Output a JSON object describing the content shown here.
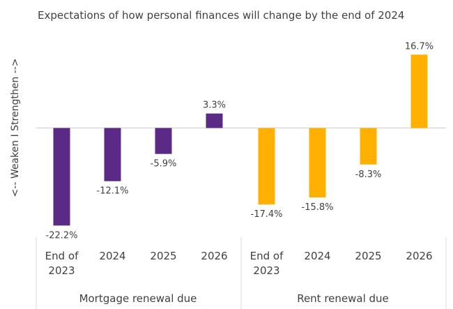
{
  "chart_data": {
    "type": "bar",
    "title": "Expectations of how personal finances will change by the end of 2024",
    "ylabel": "<-- Weaken  I  Strengthen -->",
    "xlabel": "",
    "ylim": [
      -24,
      18
    ],
    "grid": false,
    "legend": "none",
    "groups": [
      {
        "name": "Mortgage renewal due",
        "color": "#5B2A86",
        "categories": [
          [
            "End of",
            "2023"
          ],
          [
            "2024"
          ],
          [
            "2025"
          ],
          [
            "2026"
          ]
        ],
        "values": [
          -22.2,
          -12.1,
          -5.9,
          3.3
        ],
        "labels": [
          "-22.2%",
          "-12.1%",
          "-5.9%",
          "3.3%"
        ]
      },
      {
        "name": "Rent renewal due",
        "color": "#FFB000",
        "categories": [
          [
            "End of",
            "2023"
          ],
          [
            "2024"
          ],
          [
            "2025"
          ],
          [
            "2026"
          ]
        ],
        "values": [
          -17.4,
          -15.8,
          -8.3,
          16.7
        ],
        "labels": [
          "-17.4%",
          "-15.8%",
          "-8.3%",
          "16.7%"
        ]
      }
    ]
  }
}
